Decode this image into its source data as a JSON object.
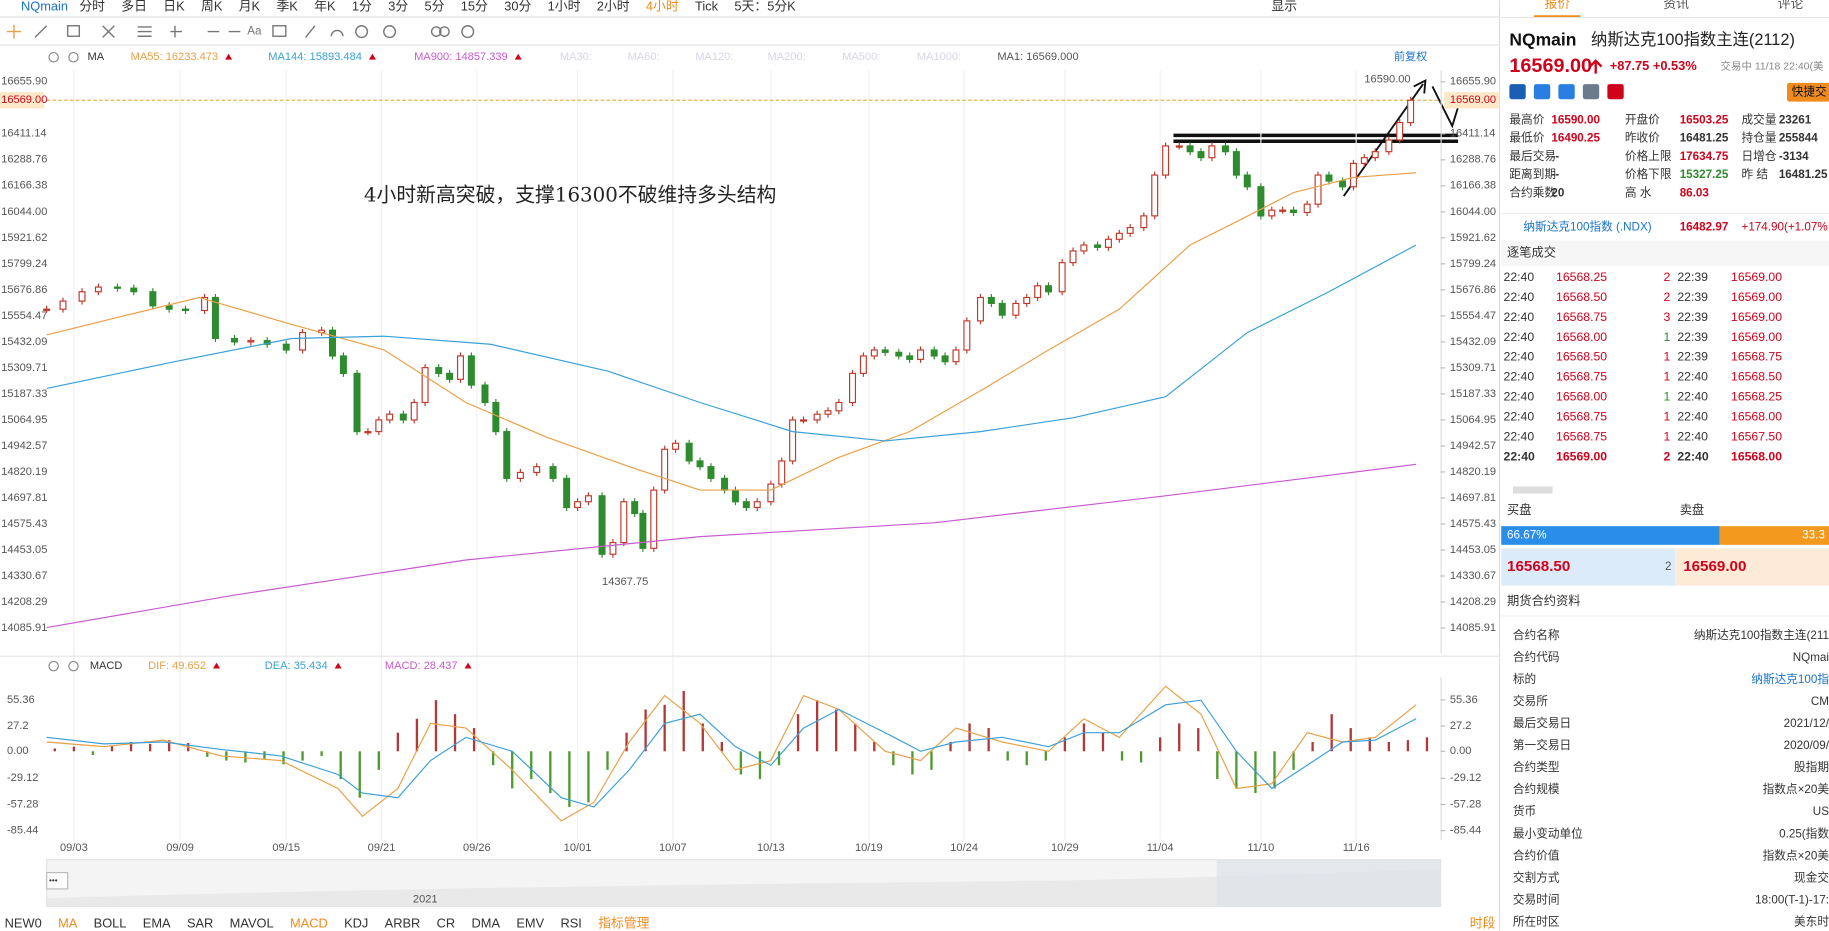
{
  "toolbar": {
    "symbol": "NQmain",
    "periods": [
      {
        "label": "分时"
      },
      {
        "label": "多日"
      },
      {
        "label": "日K"
      },
      {
        "label": "周K"
      },
      {
        "label": "月K"
      },
      {
        "label": "季K"
      },
      {
        "label": "年K"
      },
      {
        "label": "1分"
      },
      {
        "label": "3分"
      },
      {
        "label": "5分"
      },
      {
        "label": "15分"
      },
      {
        "label": "30分"
      },
      {
        "label": "1小时"
      },
      {
        "label": "2小时"
      },
      {
        "label": "4小时",
        "active": true
      },
      {
        "label": "Tick"
      },
      {
        "label": "5天：5分K"
      }
    ],
    "right": "显示"
  },
  "indicator_bar": {
    "items": [
      {
        "label": "NEW0"
      },
      {
        "label": "MA",
        "active": true
      },
      {
        "label": "BOLL"
      },
      {
        "label": "EMA"
      },
      {
        "label": "SAR"
      },
      {
        "label": "MAVOL"
      },
      {
        "label": "MACD",
        "active": true
      },
      {
        "label": "KDJ"
      },
      {
        "label": "ARBR"
      },
      {
        "label": "CR"
      },
      {
        "label": "DMA"
      },
      {
        "label": "EMV"
      },
      {
        "label": "RSI"
      },
      {
        "label": "指标管理",
        "active": true
      }
    ],
    "right": "时段"
  },
  "navigator": {
    "year": "2021",
    "handle": "•••"
  },
  "chart_data": [
    {
      "type": "candlestick",
      "indicator": "MA",
      "adjust": "前复权",
      "grid": true,
      "xlim": [
        0,
        512
      ],
      "ylim": [
        13967,
        16711
      ],
      "xticks": [
        {
          "value": 10,
          "label": "09/03"
        },
        {
          "value": 49,
          "label": "09/09"
        },
        {
          "value": 88,
          "label": "09/15"
        },
        {
          "value": 123,
          "label": "09/21"
        },
        {
          "value": 158,
          "label": "09/26"
        },
        {
          "value": 195,
          "label": "10/01"
        },
        {
          "value": 230,
          "label": "10/07"
        },
        {
          "value": 266,
          "label": "10/13"
        },
        {
          "value": 302,
          "label": "10/19"
        },
        {
          "value": 337,
          "label": "10/24"
        },
        {
          "value": 374,
          "label": "10/29"
        },
        {
          "value": 409,
          "label": "11/04"
        },
        {
          "value": 446,
          "label": "11/10"
        },
        {
          "value": 481,
          "label": "11/16"
        }
      ],
      "yticks": [
        {
          "value": 16655.9,
          "label": "16655.90"
        },
        16411.14,
        16288.76,
        16166.38,
        {
          "value": 16044,
          "label": "16044.00"
        },
        15921.62,
        15799.24,
        15676.86,
        15554.47,
        15432.09,
        15309.71,
        15187.33,
        15064.95,
        14942.57,
        14820.19,
        14697.81,
        14575.43,
        14453.05,
        14330.67,
        14208.29,
        14085.91
      ],
      "last_price": {
        "value": 16569,
        "label": "16569.00"
      },
      "close": {
        "x": [
          0,
          6,
          13,
          19,
          26,
          32,
          39,
          45,
          51,
          58,
          62,
          69,
          75,
          81,
          88,
          94,
          101,
          105,
          109,
          114,
          118,
          122,
          126,
          131,
          135,
          139,
          144,
          148,
          152,
          156,
          161,
          165,
          169,
          174,
          180,
          186,
          191,
          195,
          199,
          204,
          208,
          212,
          216,
          219,
          223,
          227,
          231,
          236,
          240,
          244,
          249,
          253,
          257,
          261,
          266,
          270,
          274,
          278,
          283,
          287,
          291,
          296,
          300,
          304,
          308,
          313,
          317,
          321,
          326,
          330,
          334,
          338,
          343,
          347,
          351,
          356,
          360,
          364,
          368,
          373,
          377,
          381,
          386,
          390,
          394,
          398,
          403,
          407,
          411,
          416,
          420,
          424,
          428,
          433,
          437,
          441,
          446,
          450,
          454,
          458,
          463,
          467,
          471,
          476,
          480,
          484,
          488,
          493,
          497,
          501
        ],
        "values": [
          15586,
          15624,
          15668,
          15690,
          15685,
          15668,
          15602,
          15586,
          15580,
          15641,
          15448,
          15432,
          15438,
          15421,
          15394,
          15476,
          15487,
          15366,
          15284,
          15010,
          15010,
          15065,
          15092,
          15065,
          15147,
          15311,
          15284,
          15256,
          15366,
          15229,
          15147,
          15010,
          14790,
          14818,
          14845,
          14790,
          14653,
          14680,
          14708,
          14433,
          14488,
          14680,
          14625,
          14461,
          14735,
          14927,
          14955,
          14872,
          14845,
          14790,
          14735,
          14680,
          14653,
          14680,
          14763,
          14872,
          15065,
          15065,
          15092,
          15108,
          15147,
          15284,
          15366,
          15394,
          15383,
          15366,
          15350,
          15394,
          15366,
          15339,
          15394,
          15531,
          15641,
          15613,
          15558,
          15613,
          15641,
          15696,
          15668,
          15805,
          15860,
          15888,
          15877,
          15915,
          15943,
          15970,
          16025,
          16217,
          16354,
          16354,
          16327,
          16299,
          16354,
          16327,
          16217,
          16162,
          16025,
          16052,
          16052,
          16041,
          16080,
          16217,
          16189,
          16162,
          16272,
          16299,
          16327,
          16382,
          16464,
          16569
        ],
        "up_color": "#c0392b",
        "down_color": "#2e8b2e"
      },
      "series": [
        {
          "name": "MA55: 16233.473",
          "color": "#e8a048",
          "x": [
            0,
            26,
            56,
            90,
            124,
            154,
            184,
            214,
            240,
            266,
            291,
            317,
            343,
            368,
            394,
            420,
            437,
            458,
            480,
            503
          ],
          "values": [
            15465,
            15547,
            15641,
            15514,
            15394,
            15147,
            14982,
            14845,
            14735,
            14735,
            14889,
            15010,
            15202,
            15394,
            15586,
            15888,
            15997,
            16135,
            16206,
            16228
          ]
        },
        {
          "name": "MA144: 15893.484",
          "color": "#3aa0d8",
          "x": [
            0,
            47,
            90,
            124,
            163,
            206,
            240,
            274,
            308,
            343,
            377,
            411,
            441,
            471,
            503
          ],
          "values": [
            15213,
            15339,
            15448,
            15459,
            15421,
            15295,
            15147,
            15010,
            14966,
            15010,
            15075,
            15174,
            15476,
            15668,
            15888
          ]
        },
        {
          "name": "MA900: 14857.339",
          "color": "#c85ad0",
          "x": [
            0,
            69,
            154,
            240,
            326,
            411,
            503
          ],
          "values": [
            14088,
            14241,
            14406,
            14516,
            14581,
            14708,
            14856
          ]
        }
      ],
      "inactive_indicators": [
        "MA30:",
        "MA60:",
        "MA120:",
        "MA200:",
        "MA500:",
        "MA1000:"
      ],
      "ma1_label": "MA1: 16569.000",
      "annotations": [
        {
          "x": 501,
          "value": 16590,
          "label": "16590.00"
        },
        {
          "x": 204,
          "value": 14367.75,
          "label": "14367.75"
        }
      ],
      "note": "4小时新高突破，支撑16300不破维持多头结构"
    },
    {
      "type": "macd",
      "indicator": "MACD",
      "grid": true,
      "xlim": [
        0,
        512
      ],
      "ylim": [
        -95.45,
        80.39
      ],
      "yticks": [
        55.36,
        27.2,
        {
          "value": 0,
          "label": "0.00"
        },
        -29.12,
        -57.28,
        -85.44
      ],
      "series": [
        {
          "name": "DIF: 49.652",
          "color": "#e8a048",
          "kind": "line",
          "x": [
            0,
            21,
            43,
            64,
            86,
            107,
            116,
            129,
            141,
            154,
            171,
            189,
            201,
            214,
            227,
            240,
            253,
            266,
            278,
            291,
            308,
            321,
            334,
            351,
            368,
            381,
            394,
            411,
            424,
            437,
            450,
            463,
            476,
            488,
            503
          ],
          "values": [
            10,
            5,
            12,
            -5,
            -10,
            -40,
            -70,
            -40,
            30,
            25,
            -20,
            -75,
            -55,
            10,
            60,
            30,
            -20,
            -10,
            60,
            45,
            0,
            -10,
            25,
            10,
            0,
            35,
            15,
            70,
            40,
            -40,
            -35,
            20,
            10,
            15,
            50
          ]
        },
        {
          "name": "DEA: 35.434",
          "color": "#3aa0d8",
          "kind": "line",
          "x": [
            0,
            21,
            43,
            64,
            86,
            107,
            116,
            129,
            141,
            154,
            171,
            189,
            201,
            214,
            227,
            240,
            253,
            266,
            278,
            291,
            308,
            321,
            334,
            351,
            368,
            381,
            394,
            411,
            424,
            437,
            450,
            463,
            476,
            488,
            503
          ],
          "values": [
            15,
            8,
            10,
            2,
            -5,
            -25,
            -45,
            -50,
            -10,
            15,
            0,
            -50,
            -60,
            -20,
            30,
            40,
            5,
            -15,
            25,
            45,
            20,
            0,
            10,
            15,
            5,
            20,
            20,
            50,
            55,
            0,
            -40,
            -15,
            10,
            12,
            35
          ]
        },
        {
          "name": "MACD: 28.437",
          "color": "#c85ad0",
          "kind": "histogram",
          "up_color": "#b03a3a",
          "down_color": "#4e9a2e",
          "x": [
            3,
            10,
            17,
            24,
            31,
            38,
            45,
            52,
            59,
            66,
            73,
            80,
            87,
            94,
            101,
            108,
            115,
            122,
            129,
            136,
            143,
            150,
            157,
            164,
            171,
            178,
            185,
            192,
            199,
            206,
            213,
            220,
            227,
            234,
            241,
            248,
            255,
            262,
            269,
            276,
            283,
            290,
            297,
            304,
            311,
            318,
            325,
            332,
            339,
            346,
            353,
            360,
            367,
            374,
            381,
            388,
            395,
            402,
            409,
            416,
            423,
            430,
            437,
            444,
            451,
            458,
            465,
            472,
            479,
            486,
            493,
            500,
            507
          ],
          "values": [
            3,
            5,
            -4,
            6,
            10,
            8,
            12,
            9,
            -6,
            -10,
            -12,
            -8,
            -14,
            -10,
            -5,
            -30,
            -50,
            -20,
            20,
            35,
            55,
            40,
            25,
            -15,
            -40,
            -30,
            -45,
            -60,
            -55,
            -20,
            20,
            45,
            50,
            65,
            30,
            10,
            -25,
            -30,
            -15,
            40,
            55,
            45,
            30,
            10,
            -15,
            -25,
            -20,
            10,
            30,
            25,
            -10,
            -15,
            -10,
            15,
            30,
            20,
            -10,
            -12,
            15,
            30,
            25,
            -30,
            -40,
            -45,
            -40,
            -20,
            10,
            40,
            25,
            15,
            10,
            12,
            15
          ]
        }
      ]
    }
  ],
  "quote_panel": {
    "tabs": [
      {
        "label": "报价",
        "active": true
      },
      {
        "label": "资讯"
      },
      {
        "label": "评论"
      }
    ],
    "symbol": "NQmain",
    "name": "纳斯达克100指数主连(2112)",
    "price": "16569.00",
    "change": "+87.75",
    "change_pct": "+0.53%",
    "status": "交易中 11/18 22:40(美",
    "quick_trade": "快捷交",
    "stats": [
      [
        {
          "label": "最高价",
          "value": "16590.00",
          "color": "#d0021b"
        },
        {
          "label": "开盘价",
          "value": "16503.25",
          "color": "#d0021b"
        },
        {
          "label": "成交量",
          "value": "23261"
        }
      ],
      [
        {
          "label": "最低价",
          "value": "16490.25",
          "color": "#d0021b"
        },
        {
          "label": "昨收价",
          "value": "16481.25"
        },
        {
          "label": "持仓量",
          "value": "255844"
        }
      ],
      [
        {
          "label": "最后交易",
          "value": "--"
        },
        {
          "label": "价格上限",
          "value": "17634.75",
          "color": "#d0021b"
        },
        {
          "label": "日增仓",
          "value": "-3134"
        }
      ],
      [
        {
          "label": "距离到期",
          "value": "--"
        },
        {
          "label": "价格下限",
          "value": "15327.25",
          "color": "#2e8b2e"
        },
        {
          "label": "昨 结",
          "value": "16481.25"
        }
      ],
      [
        {
          "label": "合约乘数",
          "value": "20"
        },
        {
          "label": "高 水",
          "value": "86.03",
          "color": "#d0021b"
        }
      ]
    ],
    "index_quote": {
      "name": "纳斯达克100指数 (.NDX)",
      "value": "16482.97",
      "change": "+174.90(+1.07%"
    },
    "trades": {
      "title": "逐笔成交",
      "rows": [
        [
          "22:40",
          "16568.25",
          "2",
          "22:39",
          "16569.00"
        ],
        [
          "22:40",
          "16568.50",
          "2",
          "22:39",
          "16569.00"
        ],
        [
          "22:40",
          "16568.75",
          "3",
          "22:39",
          "16569.00"
        ],
        [
          "22:40",
          "16568.00",
          "1",
          "22:39",
          "16569.00"
        ],
        [
          "22:40",
          "16568.50",
          "1",
          "22:39",
          "16568.75"
        ],
        [
          "22:40",
          "16568.75",
          "1",
          "22:40",
          "16568.50"
        ],
        [
          "22:40",
          "16568.00",
          "1",
          "22:40",
          "16568.25"
        ],
        [
          "22:40",
          "16568.75",
          "1",
          "22:40",
          "16568.00"
        ],
        [
          "22:40",
          "16568.75",
          "1",
          "22:40",
          "16567.50"
        ],
        [
          "22:40",
          "16569.00",
          "2",
          "22:40",
          "16568.00"
        ]
      ],
      "vol_colors": [
        "#d0021b",
        "#d0021b",
        "#d0021b",
        "#2e8b2e",
        "#d0021b",
        "#d0021b",
        "#2e8b2e",
        "#d0021b",
        "#d0021b",
        "#d0021b"
      ]
    },
    "order_book": {
      "buy_label": "买盘",
      "sell_label": "卖盘",
      "buy_pct": "66.67%",
      "sell_pct": "33.3",
      "buy_share": 66.67,
      "bid": "16568.50",
      "bid_size": "2",
      "ask": "16569.00"
    },
    "contract_info": {
      "title": "期货合约资料",
      "rows": [
        [
          "合约名称",
          "纳斯达克100指数主连(211"
        ],
        [
          "合约代码",
          "NQmai"
        ],
        [
          "标的",
          "纳斯达克100指"
        ],
        [
          "交易所",
          "CM"
        ],
        [
          "最后交易日",
          "2021/12/"
        ],
        [
          "第一交易日",
          "2020/09/"
        ],
        [
          "合约类型",
          "股指期"
        ],
        [
          "合约规模",
          "指数点×20美"
        ],
        [
          "货币",
          "US"
        ],
        [
          "最小变动单位",
          "0.25(指数"
        ],
        [
          "合约价值",
          "指数点×20美"
        ],
        [
          "交割方式",
          "现金交"
        ],
        [
          "交易时间",
          "18:00(T-1)-17:"
        ],
        [
          "所在时区",
          "美东时"
        ]
      ]
    }
  }
}
